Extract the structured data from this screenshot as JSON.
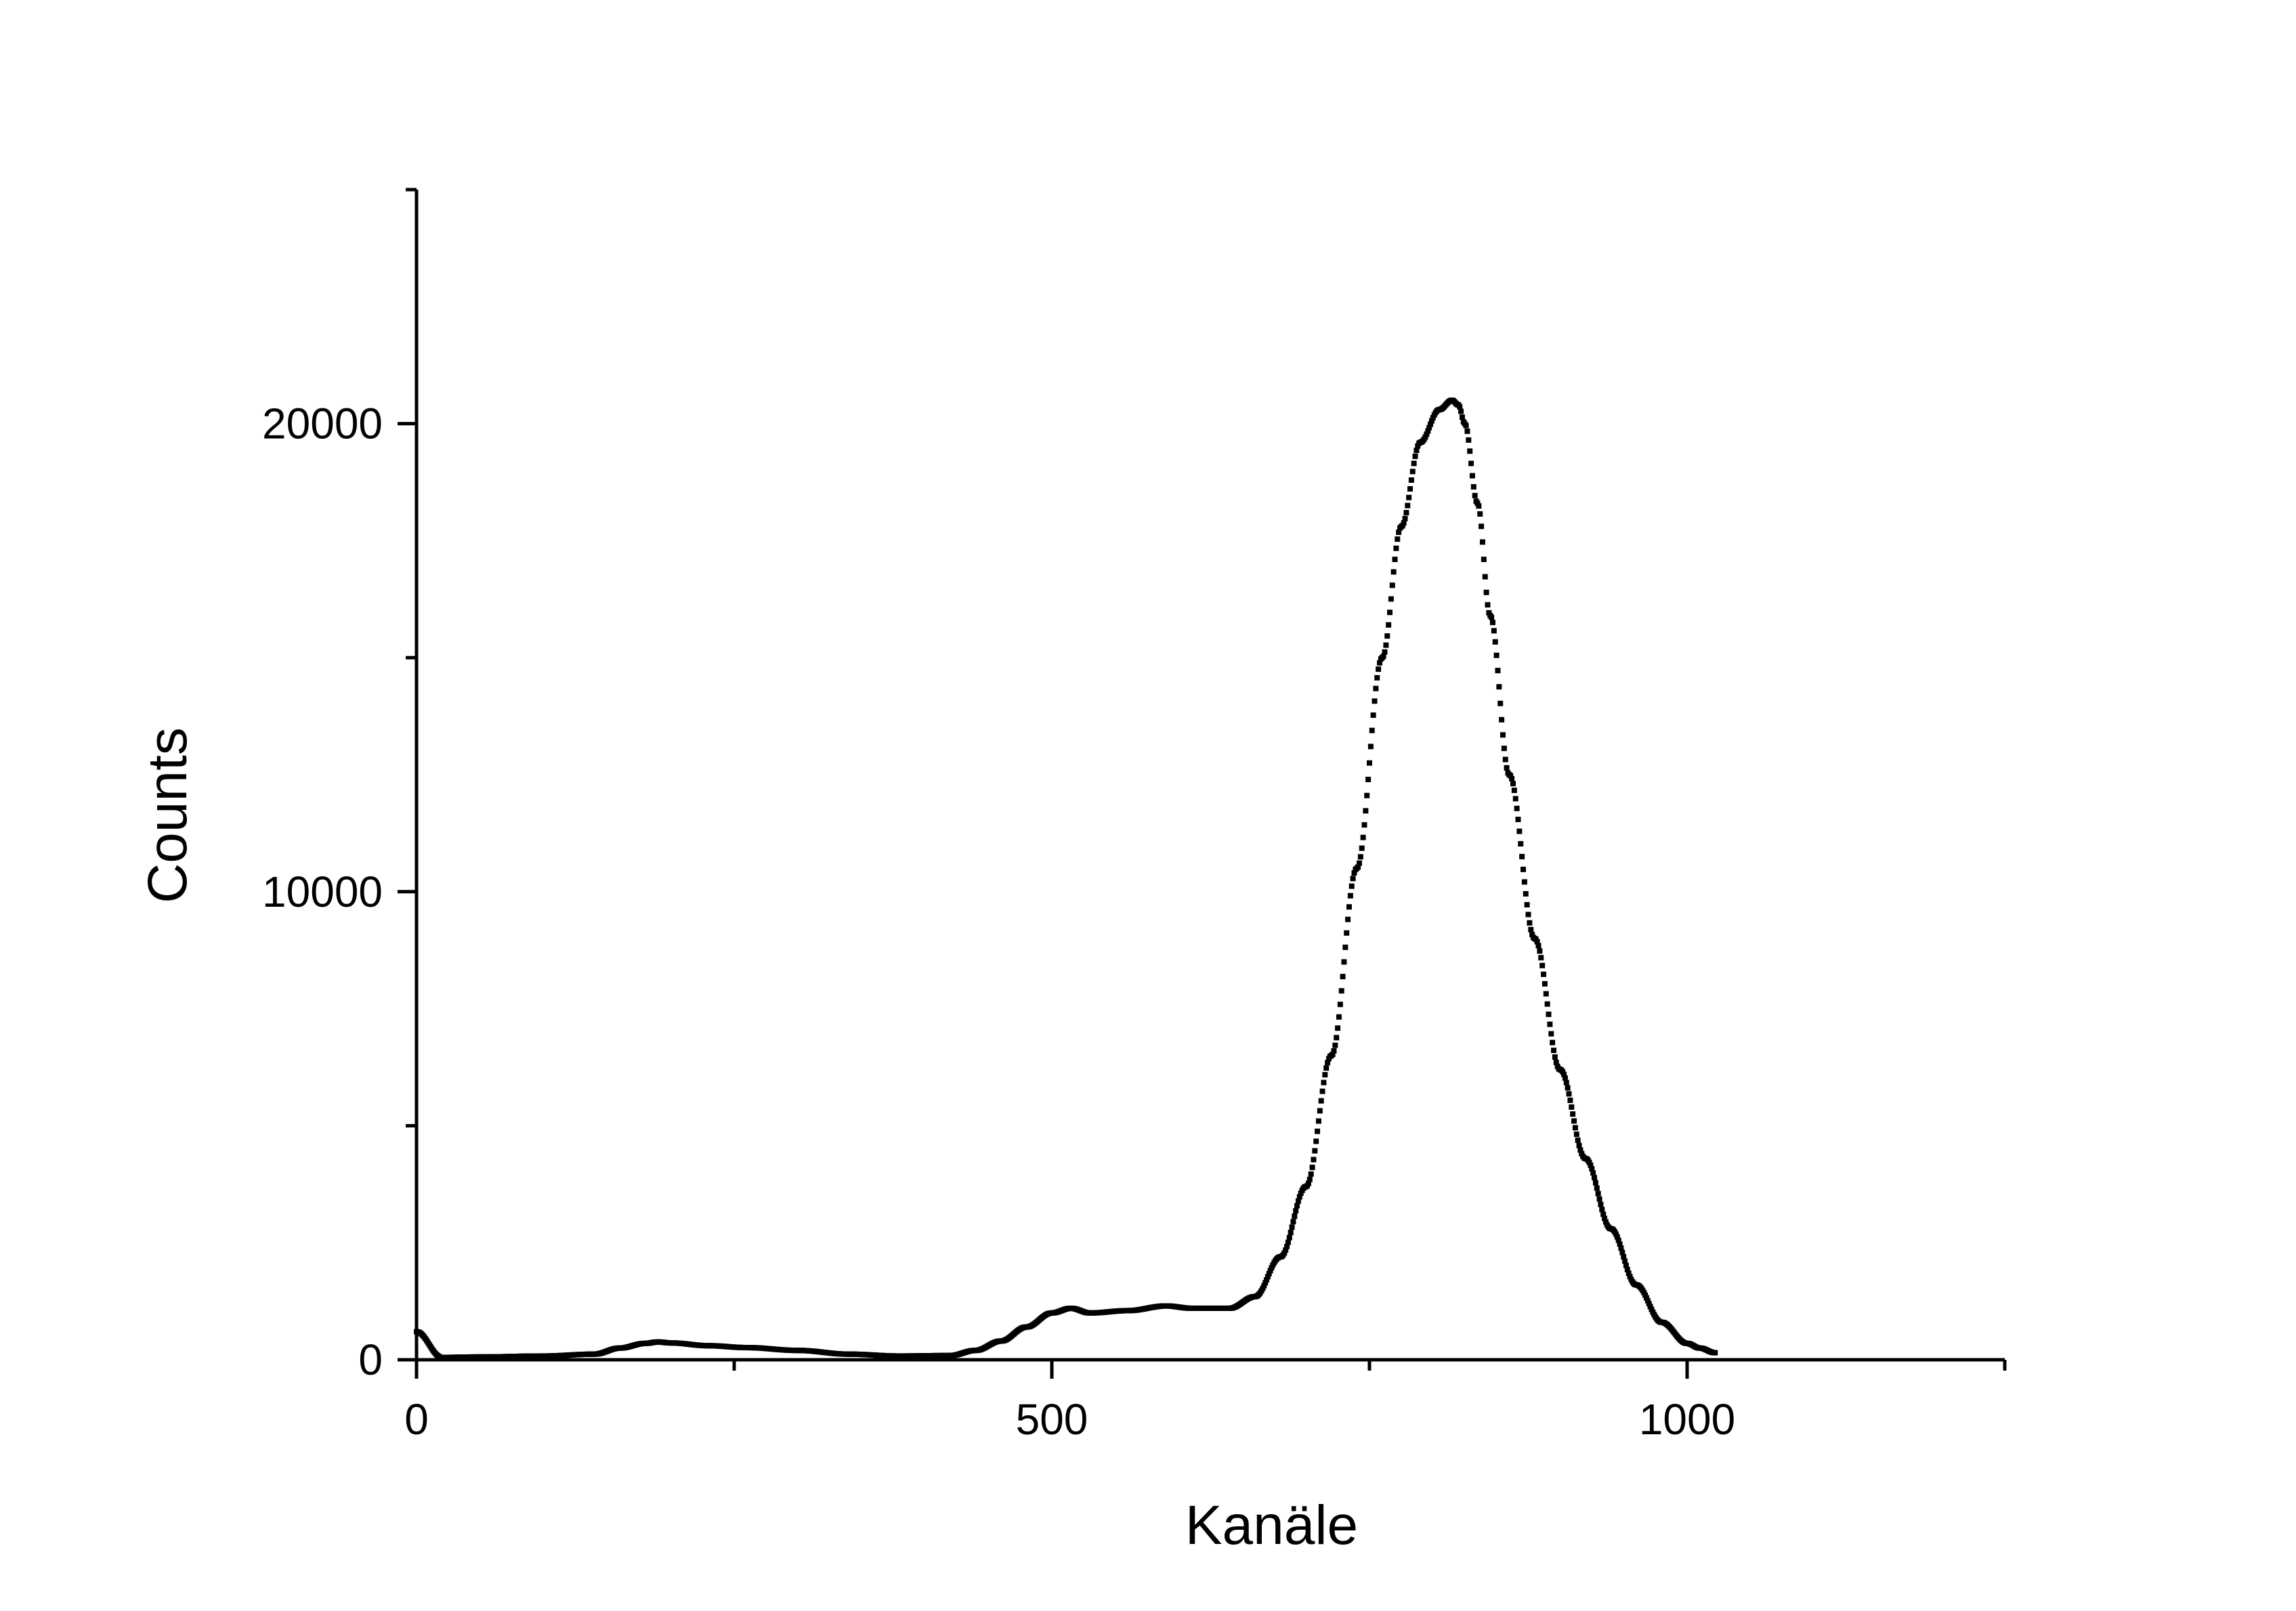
{
  "chart_data": {
    "type": "scatter",
    "xlabel": "Kanäle",
    "ylabel": "Counts",
    "xlim": [
      0,
      1250
    ],
    "ylim": [
      0,
      25000
    ],
    "x_ticks": [
      {
        "value": 0,
        "label": "0"
      },
      {
        "value": 500,
        "label": "500"
      },
      {
        "value": 1000,
        "label": "1000"
      }
    ],
    "x_minor_ticks": [
      250,
      750,
      1250
    ],
    "y_ticks": [
      {
        "value": 0,
        "label": "0"
      },
      {
        "value": 10000,
        "label": "10000"
      },
      {
        "value": 20000,
        "label": "20000"
      }
    ],
    "y_minor_ticks": [
      5000,
      15000,
      25000
    ],
    "grid": false,
    "legend": "none",
    "color": "#000000",
    "series": [
      {
        "x": [
          0,
          20,
          50,
          100,
          140,
          160,
          180,
          190,
          200,
          230,
          260,
          300,
          340,
          380,
          420,
          440,
          460,
          480,
          500,
          515,
          530,
          560,
          590,
          610,
          640,
          660,
          680,
          700,
          720,
          740,
          760,
          775,
          790,
          805,
          815,
          820,
          825,
          835,
          845,
          860,
          880,
          900,
          920,
          940,
          960,
          980,
          1000,
          1010,
          1022
        ],
        "y": [
          600,
          50,
          60,
          80,
          120,
          250,
          350,
          380,
          360,
          300,
          260,
          200,
          120,
          80,
          90,
          200,
          400,
          700,
          1000,
          1100,
          1000,
          1050,
          1150,
          1100,
          1100,
          1350,
          2200,
          3700,
          6500,
          10500,
          15000,
          17800,
          19600,
          20300,
          20500,
          20400,
          20000,
          18300,
          15900,
          12500,
          9000,
          6200,
          4300,
          2800,
          1600,
          800,
          350,
          250,
          150
        ]
      }
    ]
  }
}
